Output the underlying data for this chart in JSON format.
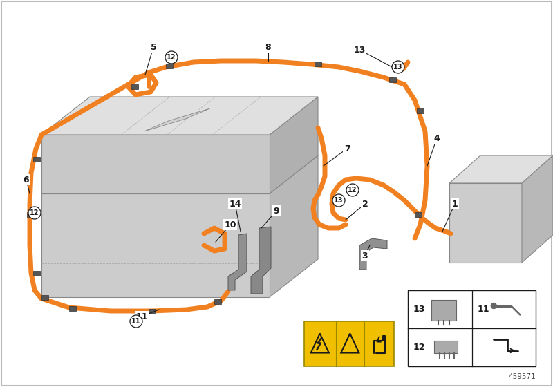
{
  "bg_color": "#ffffff",
  "orange": "#F08020",
  "gray1": "#c8c8c8",
  "gray2": "#b0b0b0",
  "gray3": "#d8d8d8",
  "gray4": "#e8e8e8",
  "gray5": "#a0a0a0",
  "gray_bracket": "#888888",
  "black": "#1a1a1a",
  "yellow": "#f0c000",
  "doc_number": "459571",
  "lw_cable": 5.0,
  "lw_thin": 0.7,
  "clip_color": "#606060",
  "border_color": "#cccccc"
}
